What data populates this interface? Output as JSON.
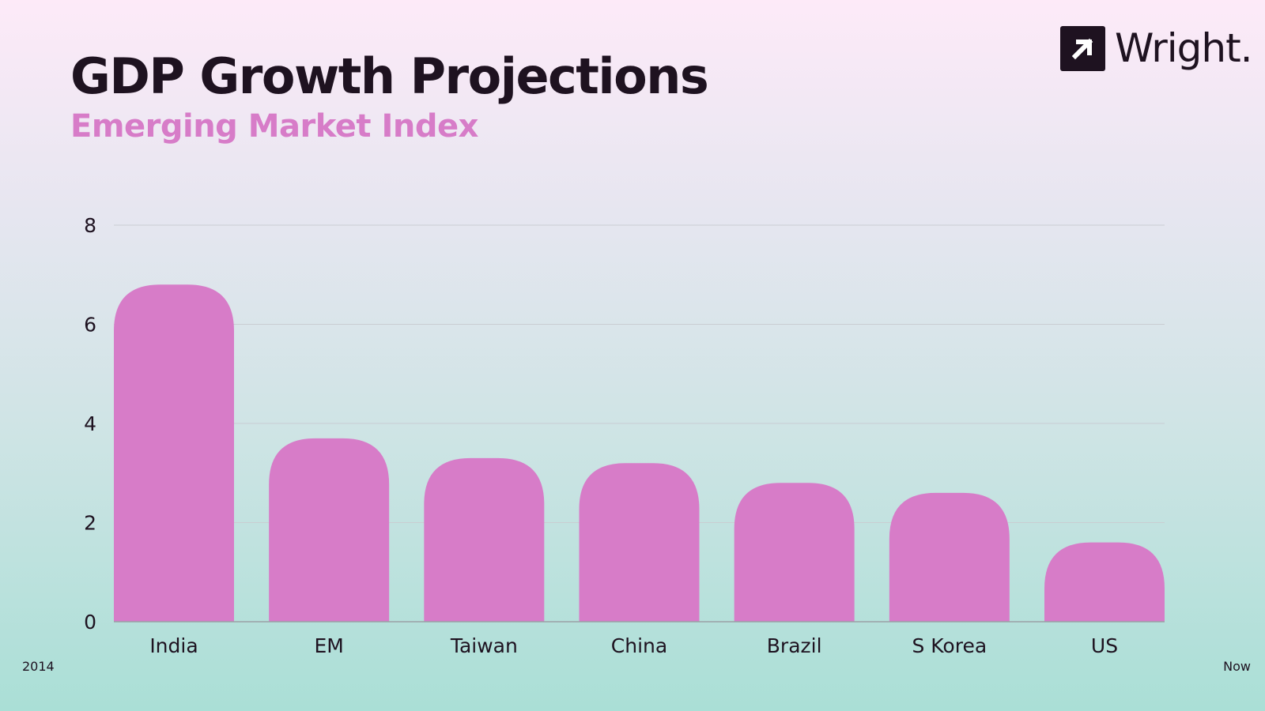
{
  "header": {
    "title": "GDP Growth Projections",
    "subtitle": "Emerging Market Index"
  },
  "brand": {
    "name": "Wright.",
    "logo_icon": "arrow-up-right-icon"
  },
  "footer": {
    "left_label": "2014",
    "right_label": "Now"
  },
  "colors": {
    "bar": "#d77cc8",
    "subtitle": "#d77cc8",
    "text": "#1e1220",
    "grid": "#c9cdd2",
    "axis": "#9aa0a6"
  },
  "chart_data": {
    "type": "bar",
    "categories": [
      "India",
      "EM",
      "Taiwan",
      "China",
      "Brazil",
      "S Korea",
      "US"
    ],
    "values": [
      6.8,
      3.7,
      3.3,
      3.2,
      2.8,
      2.6,
      1.6
    ],
    "ylim": [
      0,
      8
    ],
    "yticks": [
      0,
      2,
      4,
      6,
      8
    ],
    "grid": true,
    "legend": "none"
  }
}
